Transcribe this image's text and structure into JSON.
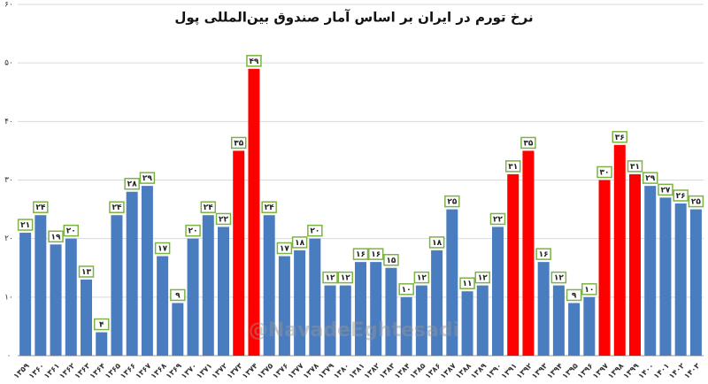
{
  "chart_data": {
    "type": "bar",
    "title": "نرخ تورم در ایران بر اساس آمار صندوق بین‌المللی پول",
    "watermark": "@NavadeEghtesadi",
    "categories": [
      "۱۳۵۹",
      "۱۳۶۰",
      "۱۳۶۱",
      "۱۳۶۲",
      "۱۳۶۳",
      "۱۳۶۴",
      "۱۳۶۵",
      "۱۳۶۶",
      "۱۳۶۷",
      "۱۳۶۸",
      "۱۳۶۹",
      "۱۳۷۰",
      "۱۳۷۱",
      "۱۳۷۲",
      "۱۳۷۳",
      "۱۳۷۴",
      "۱۳۷۵",
      "۱۳۷۶",
      "۱۳۷۷",
      "۱۳۷۸",
      "۱۳۷۹",
      "۱۳۸۰",
      "۱۳۸۱",
      "۱۳۸۲",
      "۱۳۸۳",
      "۱۳۸۴",
      "۱۳۸۵",
      "۱۳۸۶",
      "۱۳۸۷",
      "۱۳۸۸",
      "۱۳۸۹",
      "۱۳۹۰",
      "۱۳۹۱",
      "۱۳۹۲",
      "۱۳۹۳",
      "۱۳۹۴",
      "۱۳۹۵",
      "۱۳۹۶",
      "۱۳۹۷",
      "۱۳۹۸",
      "۱۳۹۹",
      "۱۴۰۰",
      "۱۴۰۱",
      "۱۴۰۲",
      "۱۴۰۳"
    ],
    "values": [
      21,
      24,
      19,
      20,
      13,
      4,
      24,
      28,
      29,
      17,
      9,
      20,
      24,
      22,
      35,
      49,
      24,
      17,
      18,
      20,
      12,
      12,
      16,
      16,
      15,
      10,
      12,
      18,
      25,
      11,
      12,
      22,
      31,
      35,
      16,
      12,
      9,
      10,
      30,
      36,
      31,
      29,
      27,
      26,
      25
    ],
    "value_labels": [
      "۲۱",
      "۲۴",
      "۱۹",
      "۲۰",
      "۱۳",
      "۴",
      "۲۴",
      "۲۸",
      "۲۹",
      "۱۷",
      "۹",
      "۲۰",
      "۲۴",
      "۲۲",
      "۳۵",
      "۴۹",
      "۲۴",
      "۱۷",
      "۱۸",
      "۲۰",
      "۱۲",
      "۱۲",
      "۱۶",
      "۱۶",
      "۱۵",
      "۱۰",
      "۱۲",
      "۱۸",
      "۲۵",
      "۱۱",
      "۱۲",
      "۲۲",
      "۳۱",
      "۳۵",
      "۱۶",
      "۱۲",
      "۹",
      "۱۰",
      "۳۰",
      "۳۶",
      "۳۱",
      "۲۹",
      "۲۷",
      "۲۶",
      "۲۵"
    ],
    "colors": [
      "#4a7cc0",
      "#4a7cc0",
      "#4a7cc0",
      "#4a7cc0",
      "#4a7cc0",
      "#4a7cc0",
      "#4a7cc0",
      "#4a7cc0",
      "#4a7cc0",
      "#4a7cc0",
      "#4a7cc0",
      "#4a7cc0",
      "#4a7cc0",
      "#4a7cc0",
      "#ff0000",
      "#ff0000",
      "#4a7cc0",
      "#4a7cc0",
      "#4a7cc0",
      "#4a7cc0",
      "#4a7cc0",
      "#4a7cc0",
      "#4a7cc0",
      "#4a7cc0",
      "#4a7cc0",
      "#4a7cc0",
      "#4a7cc0",
      "#4a7cc0",
      "#4a7cc0",
      "#4a7cc0",
      "#4a7cc0",
      "#4a7cc0",
      "#ff0000",
      "#ff0000",
      "#4a7cc0",
      "#4a7cc0",
      "#4a7cc0",
      "#4a7cc0",
      "#ff0000",
      "#ff0000",
      "#ff0000",
      "#4a7cc0",
      "#4a7cc0",
      "#4a7cc0",
      "#4a7cc0"
    ],
    "ylim": [
      0,
      60
    ],
    "yticks": [
      {
        "value": 0,
        "label": "۰"
      },
      {
        "value": 10,
        "label": "۱۰"
      },
      {
        "value": 20,
        "label": "۲۰"
      },
      {
        "value": 30,
        "label": "۳۰"
      },
      {
        "value": 40,
        "label": "۴۰"
      },
      {
        "value": 50,
        "label": "۵۰"
      },
      {
        "value": 60,
        "label": "۶۰"
      }
    ],
    "grid": true
  }
}
